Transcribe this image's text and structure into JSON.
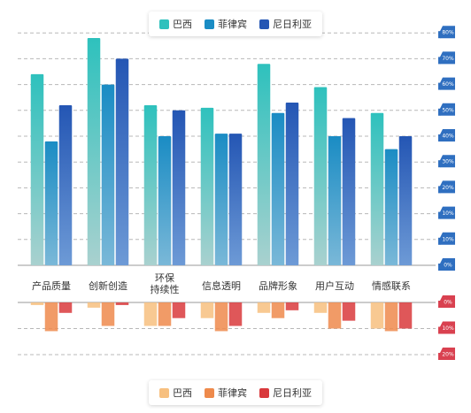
{
  "chart_data": [
    {
      "type": "bar",
      "categories": [
        "产品质量",
        "创新创造",
        "环保\n持续性",
        "信息透明",
        "品牌形象",
        "用户互动",
        "情感联系"
      ],
      "series": [
        {
          "name": "巴西",
          "values": [
            74,
            88,
            62,
            61,
            78,
            69,
            59
          ]
        },
        {
          "name": "菲律宾",
          "values": [
            48,
            70,
            50,
            51,
            59,
            50,
            45
          ]
        },
        {
          "name": "尼日利亚",
          "values": [
            62,
            80,
            60,
            51,
            63,
            57,
            50
          ]
        }
      ],
      "yticks": [
        "0%",
        "10%",
        "10%",
        "20%",
        "30%",
        "40%",
        "50%",
        "60%",
        "70%",
        "80%"
      ],
      "grid": true,
      "legend": "top",
      "colors": {
        "brazil": "#2ec1bd",
        "philippines": "#1a8cc4",
        "nigeria": "#2456b4",
        "tag": "#2f6fc0"
      }
    },
    {
      "type": "bar",
      "categories": [
        "产品质量",
        "创新创造",
        "环保\n持续性",
        "信息透明",
        "品牌形象",
        "用户互动",
        "情感联系"
      ],
      "series": [
        {
          "name": "巴西",
          "values": [
            -1,
            -2,
            -9,
            -6,
            -4,
            -4,
            -10
          ]
        },
        {
          "name": "菲律宾",
          "values": [
            -11,
            -9,
            -9,
            -11,
            -6,
            -10,
            -11
          ]
        },
        {
          "name": "尼日利亚",
          "values": [
            -4,
            -1,
            -6,
            -9,
            -3,
            -7,
            -10
          ]
        }
      ],
      "yticks": [
        "0%",
        "10%",
        "20%"
      ],
      "grid": true,
      "legend": "bottom",
      "colors": {
        "brazil": "#f7c07f",
        "philippines": "#ee8a4c",
        "nigeria": "#d9393c",
        "tag": "#d94150"
      }
    }
  ]
}
